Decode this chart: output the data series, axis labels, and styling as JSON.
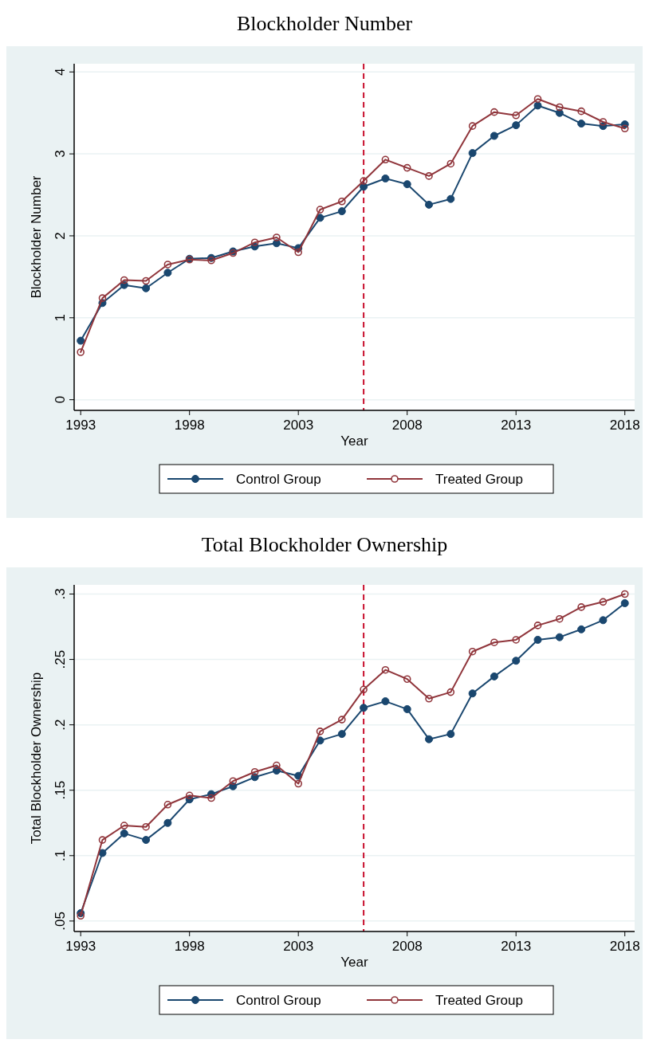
{
  "chart_data": [
    {
      "type": "line",
      "title": "Blockholder Number",
      "xlabel": "Year",
      "ylabel": "Blockholder Number",
      "x": [
        1993,
        1994,
        1995,
        1996,
        1997,
        1998,
        1999,
        2000,
        2001,
        2002,
        2003,
        2004,
        2005,
        2006,
        2007,
        2008,
        2009,
        2010,
        2011,
        2012,
        2013,
        2014,
        2015,
        2016,
        2017,
        2018
      ],
      "series": [
        {
          "name": "Control Group",
          "color": "#1a476f",
          "marker": "circle",
          "values": [
            0.72,
            1.18,
            1.4,
            1.36,
            1.55,
            1.72,
            1.73,
            1.81,
            1.87,
            1.91,
            1.85,
            2.22,
            2.3,
            2.6,
            2.7,
            2.63,
            2.38,
            2.45,
            3.01,
            3.22,
            3.35,
            3.59,
            3.5,
            3.37,
            3.34,
            3.36
          ]
        },
        {
          "name": "Treated Group",
          "color": "#90353b",
          "marker": "circle",
          "values": [
            0.58,
            1.24,
            1.46,
            1.45,
            1.65,
            1.71,
            1.7,
            1.79,
            1.92,
            1.98,
            1.8,
            2.32,
            2.42,
            2.67,
            2.93,
            2.83,
            2.73,
            2.88,
            3.34,
            3.51,
            3.47,
            3.67,
            3.57,
            3.52,
            3.39,
            3.31
          ]
        }
      ],
      "xlim": [
        1992.7,
        2018.45
      ],
      "xticks": [
        1993,
        1998,
        2003,
        2008,
        2013,
        2018
      ],
      "ylim": [
        -0.13,
        4.1
      ],
      "yticks": [
        0,
        1,
        2,
        3,
        4
      ],
      "ref_lines": [
        {
          "axis": "x",
          "value": 2006,
          "color": "#c8102e",
          "line_style": "dashed"
        }
      ],
      "grid": "y",
      "legend": "bottom"
    },
    {
      "type": "line",
      "title": "Total Blockholder Ownership",
      "xlabel": "Year",
      "ylabel": "Total Blockholder Ownership",
      "x": [
        1993,
        1994,
        1995,
        1996,
        1997,
        1998,
        1999,
        2000,
        2001,
        2002,
        2003,
        2004,
        2005,
        2006,
        2007,
        2008,
        2009,
        2010,
        2011,
        2012,
        2013,
        2014,
        2015,
        2016,
        2017,
        2018
      ],
      "series": [
        {
          "name": "Control Group",
          "color": "#1a476f",
          "marker": "circle",
          "values": [
            0.056,
            0.102,
            0.117,
            0.112,
            0.125,
            0.143,
            0.147,
            0.153,
            0.16,
            0.165,
            0.161,
            0.188,
            0.193,
            0.213,
            0.218,
            0.212,
            0.189,
            0.193,
            0.224,
            0.237,
            0.249,
            0.265,
            0.267,
            0.273,
            0.28,
            0.293
          ]
        },
        {
          "name": "Treated Group",
          "color": "#90353b",
          "marker": "circle",
          "values": [
            0.054,
            0.112,
            0.123,
            0.122,
            0.139,
            0.146,
            0.144,
            0.157,
            0.164,
            0.169,
            0.155,
            0.195,
            0.204,
            0.227,
            0.242,
            0.235,
            0.22,
            0.225,
            0.256,
            0.263,
            0.265,
            0.276,
            0.281,
            0.29,
            0.294,
            0.3
          ]
        }
      ],
      "xlim": [
        1992.7,
        2018.45
      ],
      "xticks": [
        1993,
        1998,
        2003,
        2008,
        2013,
        2018
      ],
      "ylim": [
        0.042,
        0.307
      ],
      "yticks": [
        {
          "value": 0.05,
          "label": ".05"
        },
        {
          "value": 0.1,
          "label": ".1"
        },
        {
          "value": 0.15,
          "label": ".15"
        },
        {
          "value": 0.2,
          "label": ".2"
        },
        {
          "value": 0.25,
          "label": ".25"
        },
        {
          "value": 0.3,
          "label": ".3"
        }
      ],
      "ref_lines": [
        {
          "axis": "x",
          "value": 2006,
          "color": "#c8102e",
          "line_style": "dashed"
        }
      ],
      "grid": "y",
      "legend": "bottom"
    }
  ]
}
